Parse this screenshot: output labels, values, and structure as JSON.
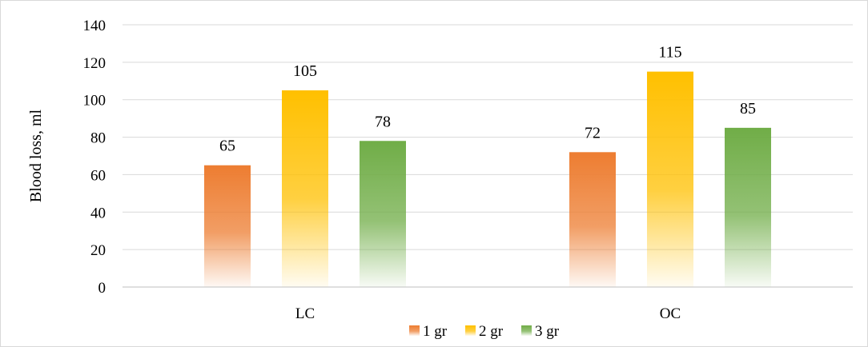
{
  "chart_data": {
    "type": "bar",
    "ylabel": "Blood loss, ml",
    "xlabel": "",
    "categories": [
      "LC",
      "OC"
    ],
    "ylim": [
      0,
      140
    ],
    "yticks": [
      0,
      20,
      40,
      60,
      80,
      100,
      120,
      140
    ],
    "grid": true,
    "legend_position": "bottom",
    "series": [
      {
        "name": "1 gr",
        "values": [
          65,
          72
        ],
        "color": "#ED7D31"
      },
      {
        "name": "2 gr",
        "values": [
          105,
          115
        ],
        "color": "#FFC000"
      },
      {
        "name": "3 gr",
        "values": [
          78,
          85
        ],
        "color": "#70AD47"
      }
    ]
  }
}
